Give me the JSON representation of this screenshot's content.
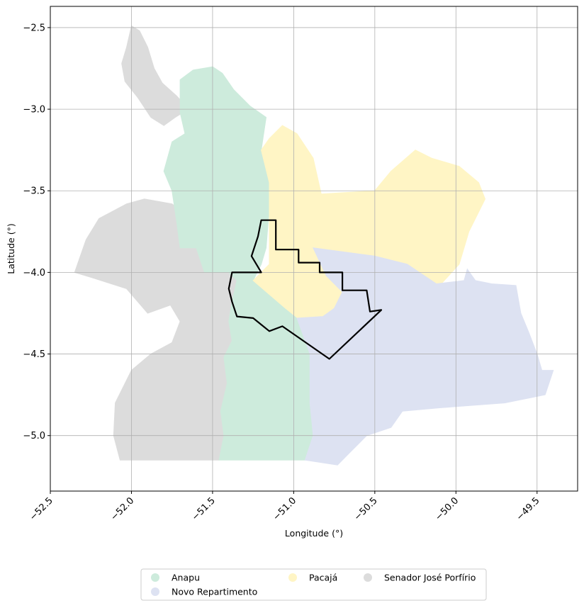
{
  "chart_data": {
    "type": "map",
    "xlabel": "Longitude (°)",
    "ylabel": "Latitude (°)",
    "xlim": [
      -52.5,
      -49.25
    ],
    "ylim": [
      -5.34,
      -2.37
    ],
    "grid": true,
    "x_ticks": [
      {
        "value": -52.5,
        "label": "−52.5"
      },
      {
        "value": -52.0,
        "label": "−52.0"
      },
      {
        "value": -51.5,
        "label": "−51.5"
      },
      {
        "value": -51.0,
        "label": "−51.0"
      },
      {
        "value": -50.5,
        "label": "−50.5"
      },
      {
        "value": -50.0,
        "label": "−50.0"
      },
      {
        "value": -49.5,
        "label": "−49.5"
      }
    ],
    "y_ticks": [
      {
        "value": -2.5,
        "label": "−2.5"
      },
      {
        "value": -3.0,
        "label": "−3.0"
      },
      {
        "value": -3.5,
        "label": "−3.5"
      },
      {
        "value": -4.0,
        "label": "−4.0"
      },
      {
        "value": -4.5,
        "label": "−4.5"
      },
      {
        "value": -5.0,
        "label": "−5.0"
      }
    ],
    "legend_placement": "bottom-center",
    "legend": [
      {
        "label": "Anapu",
        "color": "#cdebdc"
      },
      {
        "label": "Novo Repartimento",
        "color": "#dde2f2"
      },
      {
        "label": "Pacajá",
        "color": "#fff5c5"
      },
      {
        "label": "Senador José Porfírio",
        "color": "#dcdcdc"
      }
    ],
    "regions": [
      {
        "name": "Senador José Porfírio",
        "color": "#dcdcdc",
        "polygons": [
          [
            [
              -52.0,
              -2.49
            ],
            [
              -51.95,
              -2.52
            ],
            [
              -51.9,
              -2.62
            ],
            [
              -51.86,
              -2.75
            ],
            [
              -51.81,
              -2.84
            ],
            [
              -51.72,
              -2.92
            ],
            [
              -51.65,
              -3.0
            ],
            [
              -51.73,
              -3.05
            ],
            [
              -51.8,
              -3.1
            ],
            [
              -51.88,
              -3.05
            ],
            [
              -51.96,
              -2.93
            ],
            [
              -52.04,
              -2.83
            ],
            [
              -52.06,
              -2.72
            ],
            [
              -52.03,
              -2.62
            ]
          ],
          [
            [
              -51.38,
              -3.95
            ],
            [
              -51.35,
              -4.05
            ],
            [
              -51.38,
              -4.18
            ],
            [
              -51.4,
              -4.3
            ],
            [
              -51.38,
              -4.42
            ],
            [
              -51.43,
              -4.52
            ],
            [
              -51.41,
              -4.68
            ],
            [
              -51.45,
              -4.85
            ],
            [
              -51.43,
              -5.0
            ],
            [
              -51.46,
              -5.15
            ],
            [
              -52.07,
              -5.15
            ],
            [
              -52.11,
              -5.0
            ],
            [
              -52.1,
              -4.8
            ],
            [
              -52.0,
              -4.6
            ],
            [
              -51.88,
              -4.5
            ],
            [
              -51.75,
              -4.43
            ],
            [
              -51.7,
              -4.3
            ],
            [
              -51.76,
              -4.2
            ],
            [
              -51.9,
              -4.25
            ],
            [
              -52.03,
              -4.1
            ],
            [
              -52.25,
              -4.03
            ],
            [
              -52.35,
              -4.0
            ],
            [
              -52.28,
              -3.8
            ],
            [
              -52.2,
              -3.67
            ],
            [
              -52.03,
              -3.58
            ],
            [
              -51.92,
              -3.55
            ],
            [
              -51.75,
              -3.58
            ],
            [
              -51.62,
              -3.68
            ],
            [
              -51.57,
              -3.85
            ],
            [
              -51.48,
              -3.95
            ]
          ]
        ]
      },
      {
        "name": "Anapu",
        "color": "#cdebdc",
        "polygons": [
          [
            [
              -51.5,
              -2.74
            ],
            [
              -51.62,
              -2.76
            ],
            [
              -51.7,
              -2.82
            ],
            [
              -51.7,
              -3.02
            ],
            [
              -51.67,
              -3.15
            ],
            [
              -51.75,
              -3.2
            ],
            [
              -51.8,
              -3.38
            ],
            [
              -51.75,
              -3.5
            ],
            [
              -51.72,
              -3.7
            ],
            [
              -51.7,
              -3.85
            ],
            [
              -51.6,
              -3.85
            ],
            [
              -51.55,
              -4.0
            ],
            [
              -51.4,
              -4.0
            ],
            [
              -51.35,
              -4.05
            ],
            [
              -51.38,
              -4.18
            ],
            [
              -51.4,
              -4.3
            ],
            [
              -51.38,
              -4.42
            ],
            [
              -51.43,
              -4.52
            ],
            [
              -51.41,
              -4.68
            ],
            [
              -51.45,
              -4.85
            ],
            [
              -51.43,
              -5.0
            ],
            [
              -51.46,
              -5.15
            ],
            [
              -50.93,
              -5.15
            ],
            [
              -50.88,
              -5.0
            ],
            [
              -50.9,
              -4.8
            ],
            [
              -50.9,
              -4.5
            ],
            [
              -50.98,
              -4.28
            ],
            [
              -51.05,
              -4.22
            ],
            [
              -51.25,
              -4.05
            ],
            [
              -51.2,
              -3.95
            ],
            [
              -51.17,
              -3.85
            ],
            [
              -51.15,
              -3.6
            ],
            [
              -51.15,
              -3.45
            ],
            [
              -51.2,
              -3.25
            ],
            [
              -51.17,
              -3.05
            ],
            [
              -51.27,
              -2.98
            ],
            [
              -51.37,
              -2.88
            ],
            [
              -51.44,
              -2.78
            ]
          ]
        ]
      },
      {
        "name": "Pacajá",
        "color": "#fff5c5",
        "polygons": [
          [
            [
              -51.15,
              -3.18
            ],
            [
              -51.07,
              -3.1
            ],
            [
              -50.98,
              -3.15
            ],
            [
              -50.88,
              -3.3
            ],
            [
              -50.83,
              -3.52
            ],
            [
              -50.5,
              -3.5
            ],
            [
              -50.4,
              -3.38
            ],
            [
              -50.25,
              -3.25
            ],
            [
              -50.15,
              -3.3
            ],
            [
              -49.98,
              -3.35
            ],
            [
              -49.86,
              -3.45
            ],
            [
              -49.82,
              -3.55
            ],
            [
              -49.92,
              -3.75
            ],
            [
              -49.98,
              -3.95
            ],
            [
              -50.1,
              -4.08
            ],
            [
              -50.3,
              -3.95
            ],
            [
              -50.5,
              -3.9
            ],
            [
              -50.88,
              -3.85
            ],
            [
              -50.8,
              -4.02
            ],
            [
              -50.7,
              -4.12
            ],
            [
              -50.75,
              -4.22
            ],
            [
              -50.82,
              -4.27
            ],
            [
              -50.95,
              -4.3
            ],
            [
              -51.05,
              -4.22
            ],
            [
              -51.25,
              -4.05
            ],
            [
              -51.15,
              -3.95
            ],
            [
              -51.15,
              -3.75
            ],
            [
              -51.15,
              -3.45
            ],
            [
              -51.2,
              -3.25
            ]
          ]
        ]
      },
      {
        "name": "Novo Repartimento",
        "color": "#dde2f2",
        "polygons": [
          [
            [
              -50.88,
              -3.85
            ],
            [
              -50.5,
              -3.9
            ],
            [
              -50.3,
              -3.95
            ],
            [
              -50.12,
              -4.07
            ],
            [
              -49.95,
              -4.05
            ],
            [
              -49.93,
              -3.98
            ],
            [
              -49.88,
              -4.05
            ],
            [
              -49.78,
              -4.07
            ],
            [
              -49.63,
              -4.08
            ],
            [
              -49.6,
              -4.25
            ],
            [
              -49.55,
              -4.37
            ],
            [
              -49.5,
              -4.5
            ],
            [
              -49.47,
              -4.6
            ],
            [
              -49.4,
              -4.6
            ],
            [
              -49.45,
              -4.75
            ],
            [
              -49.7,
              -4.8
            ],
            [
              -50.1,
              -4.83
            ],
            [
              -50.33,
              -4.85
            ],
            [
              -50.4,
              -4.95
            ],
            [
              -50.55,
              -5.0
            ],
            [
              -50.65,
              -5.1
            ],
            [
              -50.73,
              -5.18
            ],
            [
              -50.93,
              -5.15
            ],
            [
              -50.88,
              -5.0
            ],
            [
              -50.9,
              -4.8
            ],
            [
              -50.9,
              -4.5
            ],
            [
              -50.98,
              -4.28
            ],
            [
              -50.82,
              -4.27
            ],
            [
              -50.75,
              -4.22
            ],
            [
              -50.7,
              -4.12
            ],
            [
              -50.8,
              -4.02
            ]
          ]
        ]
      }
    ],
    "outline": [
      [
        -51.2,
        -3.68
      ],
      [
        -51.11,
        -3.68
      ],
      [
        -51.11,
        -3.86
      ],
      [
        -50.97,
        -3.86
      ],
      [
        -50.97,
        -3.94
      ],
      [
        -50.84,
        -3.94
      ],
      [
        -50.84,
        -4.0
      ],
      [
        -50.7,
        -4.0
      ],
      [
        -50.7,
        -4.11
      ],
      [
        -50.55,
        -4.11
      ],
      [
        -50.53,
        -4.24
      ],
      [
        -50.46,
        -4.23
      ],
      [
        -50.78,
        -4.53
      ],
      [
        -51.07,
        -4.33
      ],
      [
        -51.15,
        -4.36
      ],
      [
        -51.2,
        -4.32
      ],
      [
        -51.25,
        -4.28
      ],
      [
        -51.35,
        -4.27
      ],
      [
        -51.38,
        -4.18
      ],
      [
        -51.4,
        -4.1
      ],
      [
        -51.38,
        -4.0
      ],
      [
        -51.2,
        -4.0
      ],
      [
        -51.26,
        -3.9
      ],
      [
        -51.22,
        -3.78
      ]
    ]
  }
}
